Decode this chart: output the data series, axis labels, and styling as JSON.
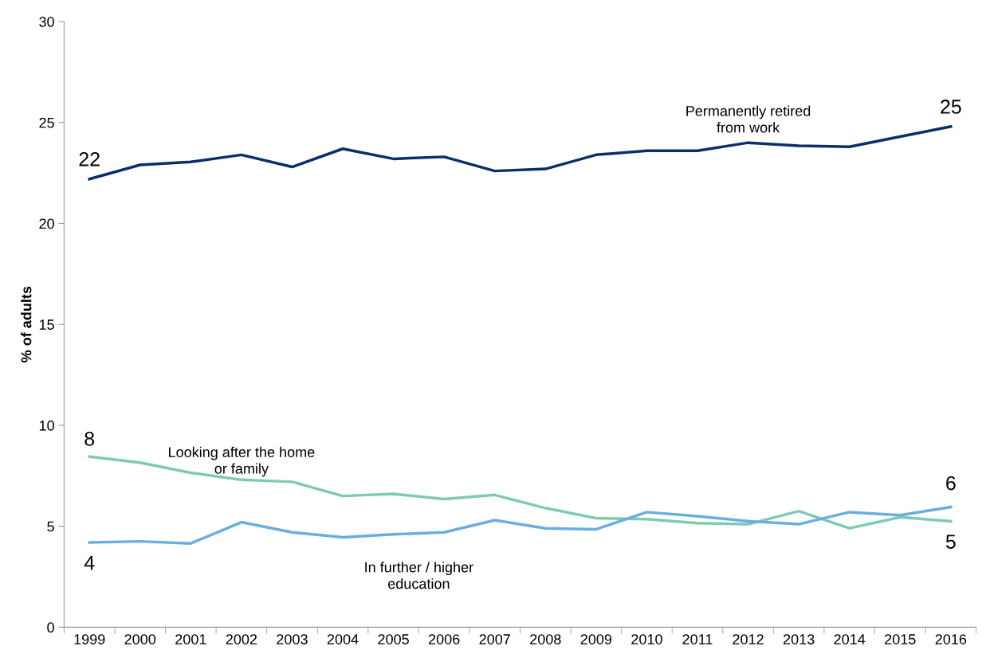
{
  "chart_data": {
    "type": "line",
    "ylabel": "% of adults",
    "categories": [
      "1999",
      "2000",
      "2001",
      "2002",
      "2003",
      "2004",
      "2005",
      "2006",
      "2007",
      "2008",
      "2009",
      "2010",
      "2011",
      "2012",
      "2013",
      "2014",
      "2015",
      "2016"
    ],
    "series": [
      {
        "name": "Permanently retired from work",
        "color": "#0b2f6b",
        "values": [
          22.2,
          22.9,
          23.05,
          23.4,
          22.8,
          23.7,
          23.2,
          23.3,
          22.6,
          22.7,
          23.4,
          23.6,
          23.6,
          24.0,
          23.85,
          23.8,
          24.3,
          24.8
        ],
        "value_labels": [
          "22",
          null,
          null,
          null,
          null,
          null,
          null,
          null,
          null,
          null,
          null,
          null,
          null,
          null,
          null,
          null,
          null,
          "25"
        ]
      },
      {
        "name": "Looking after the home or family",
        "color": "#7ecab2",
        "values": [
          8.45,
          8.15,
          7.65,
          7.3,
          7.2,
          6.5,
          6.6,
          6.35,
          6.55,
          5.9,
          5.4,
          5.35,
          5.15,
          5.1,
          5.75,
          4.9,
          5.45,
          5.25
        ],
        "value_labels": [
          "8",
          null,
          null,
          null,
          null,
          null,
          null,
          null,
          null,
          null,
          null,
          null,
          null,
          null,
          null,
          null,
          null,
          "5"
        ]
      },
      {
        "name": "In further / higher education",
        "color": "#6aaee0",
        "values": [
          4.2,
          4.25,
          4.15,
          5.2,
          4.7,
          4.45,
          4.6,
          4.7,
          5.3,
          4.9,
          4.85,
          5.7,
          5.5,
          5.25,
          5.1,
          5.7,
          5.55,
          5.95
        ],
        "value_labels": [
          "4",
          null,
          null,
          null,
          null,
          null,
          null,
          null,
          null,
          null,
          null,
          null,
          null,
          null,
          null,
          null,
          null,
          "6"
        ]
      }
    ],
    "ylim": [
      0,
      30
    ],
    "yticks": [
      0,
      5,
      10,
      15,
      20,
      25,
      30
    ],
    "grid": false,
    "legend": false,
    "marker": "none",
    "line_style": "solid"
  }
}
